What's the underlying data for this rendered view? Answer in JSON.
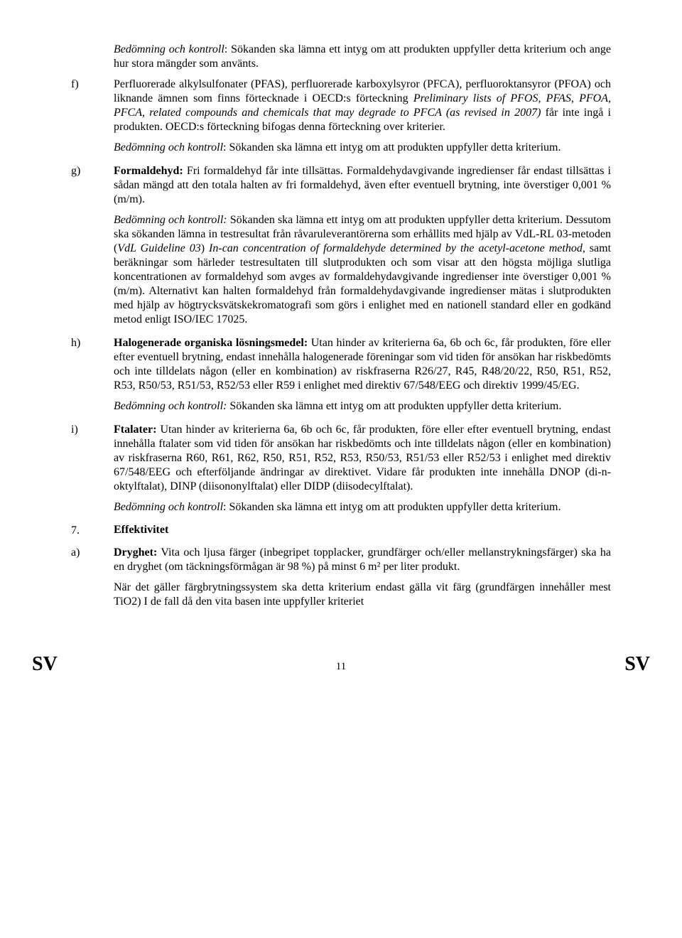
{
  "p_top1": "<i>Bedömning och kontroll</i>: Sökanden ska lämna ett intyg om att produkten uppfyller detta kriterium och ange hur stora mängder som använts.",
  "f_label": "f)",
  "f_p1": "Perfluorerade alkylsulfonater (PFAS), perfluorerade karboxylsyror (PFCA), perfluoroktansyror (PFOA) och liknande ämnen som finns förtecknade i OECD:s förteckning <i>Preliminary lists of PFOS, PFAS, PFOA, PFCA, related compounds and chemicals that may degrade to PFCA (as revised in 2007)</i> får inte ingå i produkten. OECD:s förteckning bifogas denna förteckning over kriterier.",
  "f_p2": "<i>Bedömning och kontroll</i>: Sökanden ska lämna ett intyg om att produkten uppfyller detta kriterium.",
  "g_label": "g)",
  "g_p1": "<b>Formaldehyd:</b> Fri formaldehyd får inte tillsättas. Formaldehydavgivande ingredienser får endast tillsättas i sådan mängd att den totala halten av fri formaldehyd, även efter eventuell brytning, inte överstiger 0,001 % (m/m).",
  "g_p2": "<i>Bedömning och kontroll:</i> Sökanden ska lämna ett intyg om att produkten uppfyller detta kriterium. Dessutom ska sökanden lämna in testresultat från råvaruleverantörerna som erhållits med hjälp av VdL-RL 03-metoden (<i>VdL Guideline 03</i>) <i>In-can concentration of formaldehyde determined by the acetyl-acetone method,</i> samt beräkningar som härleder testresultaten till slutprodukten och som visar att den högsta möjliga slutliga koncentrationen av formaldehyd som avges av formaldehydavgivande ingredienser inte överstiger 0,001 % (m/m). Alternativt kan halten formaldehyd från formaldehydavgivande ingredienser mätas i slutprodukten med hjälp av högtrycksvätskekromatografi som görs i enlighet med en nationell standard eller en godkänd metod enligt ISO/IEC 17025.",
  "h_label": "h)",
  "h_p1": "<b>Halogenerade organiska lösningsmedel:</b> Utan hinder av kriterierna 6a, 6b och 6c, får produkten, före eller efter eventuell brytning, endast innehålla halogenerade föreningar som vid tiden för ansökan har riskbedömts och inte tilldelats någon (eller en kombination) av riskfraserna R26/27, R45, R48/20/22, R50, R51, R52, R53, R50/53, R51/53, R52/53 eller R59 i enlighet med direktiv 67/548/EEG och direktiv 1999/45/EG.",
  "h_p2": "<i>Bedömning och kontroll:</i> Sökanden ska lämna ett intyg om att produkten uppfyller detta kriterium.",
  "i_label": "i)",
  "i_p1": "<b>Ftalater:</b> Utan hinder av kriterierna 6a, 6b och 6c, får produkten, före eller efter eventuell brytning, endast innehålla ftalater som vid tiden för ansökan har riskbedömts och inte tilldelats någon (eller en kombination) av riskfraserna R60, R61, R62, R50, R51, R52, R53, R50/53, R51/53 eller R52/53 i enlighet med direktiv 67/548/EEG och efterföljande ändringar av direktivet. Vidare får produkten inte innehålla DNOP (di-n-oktylftalat), DINP (diisononylftalat) eller DIDP (diisodecylftalat).",
  "i_p2": "<i>Bedömning och kontroll</i>: Sökanden ska lämna ett intyg om att produkten uppfyller detta kriterium.",
  "sec7_label": "7.",
  "sec7_heading": "Effektivitet",
  "a_label": "a)",
  "a_p1": "<b>Dryghet:</b> Vita och ljusa färger (inbegripet topplacker, grundfärger och/eller mellanstrykningsfärger) ska ha en dryghet (om täckningsförmågan är 98 %) på minst 6 m² per liter produkt.",
  "a_p2": "När det gäller färgbrytningssystem ska detta kriterium endast gälla vit färg (grundfärgen innehåller mest TiO2) I de fall då den vita basen inte uppfyller kriteriet",
  "footer_left": "SV",
  "footer_right": "SV",
  "page_number": "11"
}
